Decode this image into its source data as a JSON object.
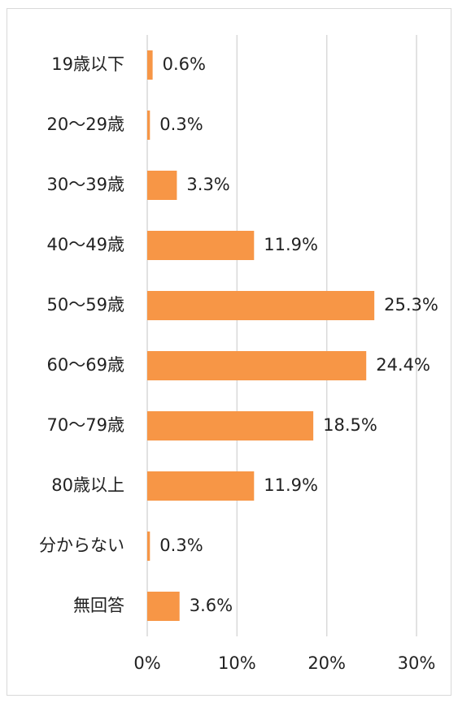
{
  "chart_data": {
    "type": "bar",
    "orientation": "horizontal",
    "categories": [
      "19歳以下",
      "20～29歳",
      "30～39歳",
      "40～49歳",
      "50～59歳",
      "60～69歳",
      "70～79歳",
      "80歳以上",
      "分からない",
      "無回答"
    ],
    "values": [
      0.6,
      0.3,
      3.3,
      11.9,
      25.3,
      24.4,
      18.5,
      11.9,
      0.3,
      3.6
    ],
    "value_labels": [
      "0.6%",
      "0.3%",
      "3.3%",
      "11.9%",
      "25.3%",
      "24.4%",
      "18.5%",
      "11.9%",
      "0.3%",
      "3.6%"
    ],
    "color": "#f79646",
    "xlim": [
      0,
      30
    ],
    "xticks": [
      {
        "value": 0,
        "label": "0%"
      },
      {
        "value": 10,
        "label": "10%"
      },
      {
        "value": 20,
        "label": "20%"
      },
      {
        "value": 30,
        "label": "30%"
      }
    ],
    "grid": true
  }
}
